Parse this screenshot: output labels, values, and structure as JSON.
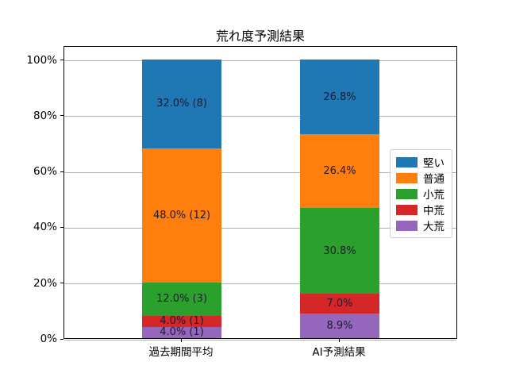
{
  "chart_data": {
    "type": "bar",
    "stacked": true,
    "title": "荒れ度予測結果",
    "categories": [
      "過去期間平均",
      "AI予測結果"
    ],
    "series": [
      {
        "name": "堅い",
        "color": "#1f77b4",
        "values": [
          32.0,
          26.8
        ],
        "labels": [
          "32.0% (8)",
          "26.8%"
        ]
      },
      {
        "name": "普通",
        "color": "#ff7f0e",
        "values": [
          48.0,
          26.4
        ],
        "labels": [
          "48.0% (12)",
          "26.4%"
        ]
      },
      {
        "name": "小荒",
        "color": "#2ca02c",
        "values": [
          12.0,
          30.8
        ],
        "labels": [
          "12.0% (3)",
          "30.8%"
        ]
      },
      {
        "name": "中荒",
        "color": "#d62728",
        "values": [
          4.0,
          7.0
        ],
        "labels": [
          "4.0% (1)",
          "7.0%"
        ]
      },
      {
        "name": "大荒",
        "color": "#9467bd",
        "values": [
          4.0,
          8.9
        ],
        "labels": [
          "4.0% (1)",
          "8.9%"
        ]
      }
    ],
    "ylabel": "",
    "xlabel": "",
    "ytick_values": [
      0,
      20,
      40,
      60,
      80,
      100
    ],
    "ytick_labels": [
      "0%",
      "20%",
      "40%",
      "60%",
      "80%",
      "100%"
    ],
    "ylim": [
      0,
      105
    ],
    "grid": true,
    "grid_color": "#b0b0b0",
    "legend_position": "center right",
    "legend_order": [
      "堅い",
      "普通",
      "小荒",
      "中荒",
      "大荒"
    ]
  }
}
